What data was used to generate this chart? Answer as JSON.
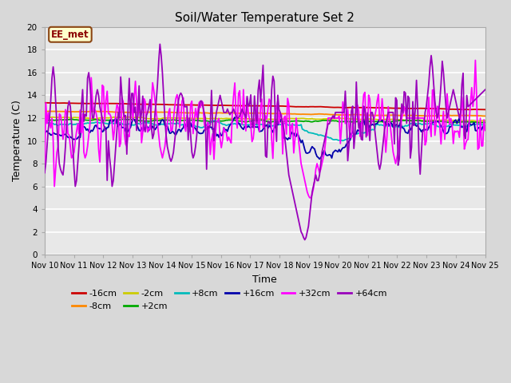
{
  "title": "Soil/Water Temperature Set 2",
  "xlabel": "Time",
  "ylabel": "Temperature (C)",
  "ylim": [
    0,
    20
  ],
  "background_color": "#d8d8d8",
  "plot_bg_color": "#e8e8e8",
  "grid_color": "#ffffff",
  "annotation_text": "EE_met",
  "annotation_bg": "#ffffcc",
  "annotation_border": "#8B4513",
  "series": [
    {
      "label": "-16cm",
      "color": "#cc0000"
    },
    {
      "label": "-8cm",
      "color": "#ff8800"
    },
    {
      "label": "-2cm",
      "color": "#cccc00"
    },
    {
      "label": "+2cm",
      "color": "#00aa00"
    },
    {
      "label": "+8cm",
      "color": "#00bbbb"
    },
    {
      "label": "+16cm",
      "color": "#0000aa"
    },
    {
      "label": "+32cm",
      "color": "#ff00ff"
    },
    {
      "label": "+64cm",
      "color": "#9900bb"
    }
  ],
  "xtick_labels": [
    "Nov 10",
    "Nov 11",
    "Nov 12",
    "Nov 13",
    "Nov 14",
    "Nov 15",
    "Nov 16",
    "Nov 17",
    "Nov 18",
    "Nov 19",
    "Nov 20",
    "Nov 21",
    "Nov 22",
    "Nov 23",
    "Nov 24",
    "Nov 25"
  ],
  "ytick_labels": [
    "0",
    "2",
    "4",
    "6",
    "8",
    "10",
    "12",
    "14",
    "16",
    "18",
    "20"
  ],
  "n_points": 360
}
